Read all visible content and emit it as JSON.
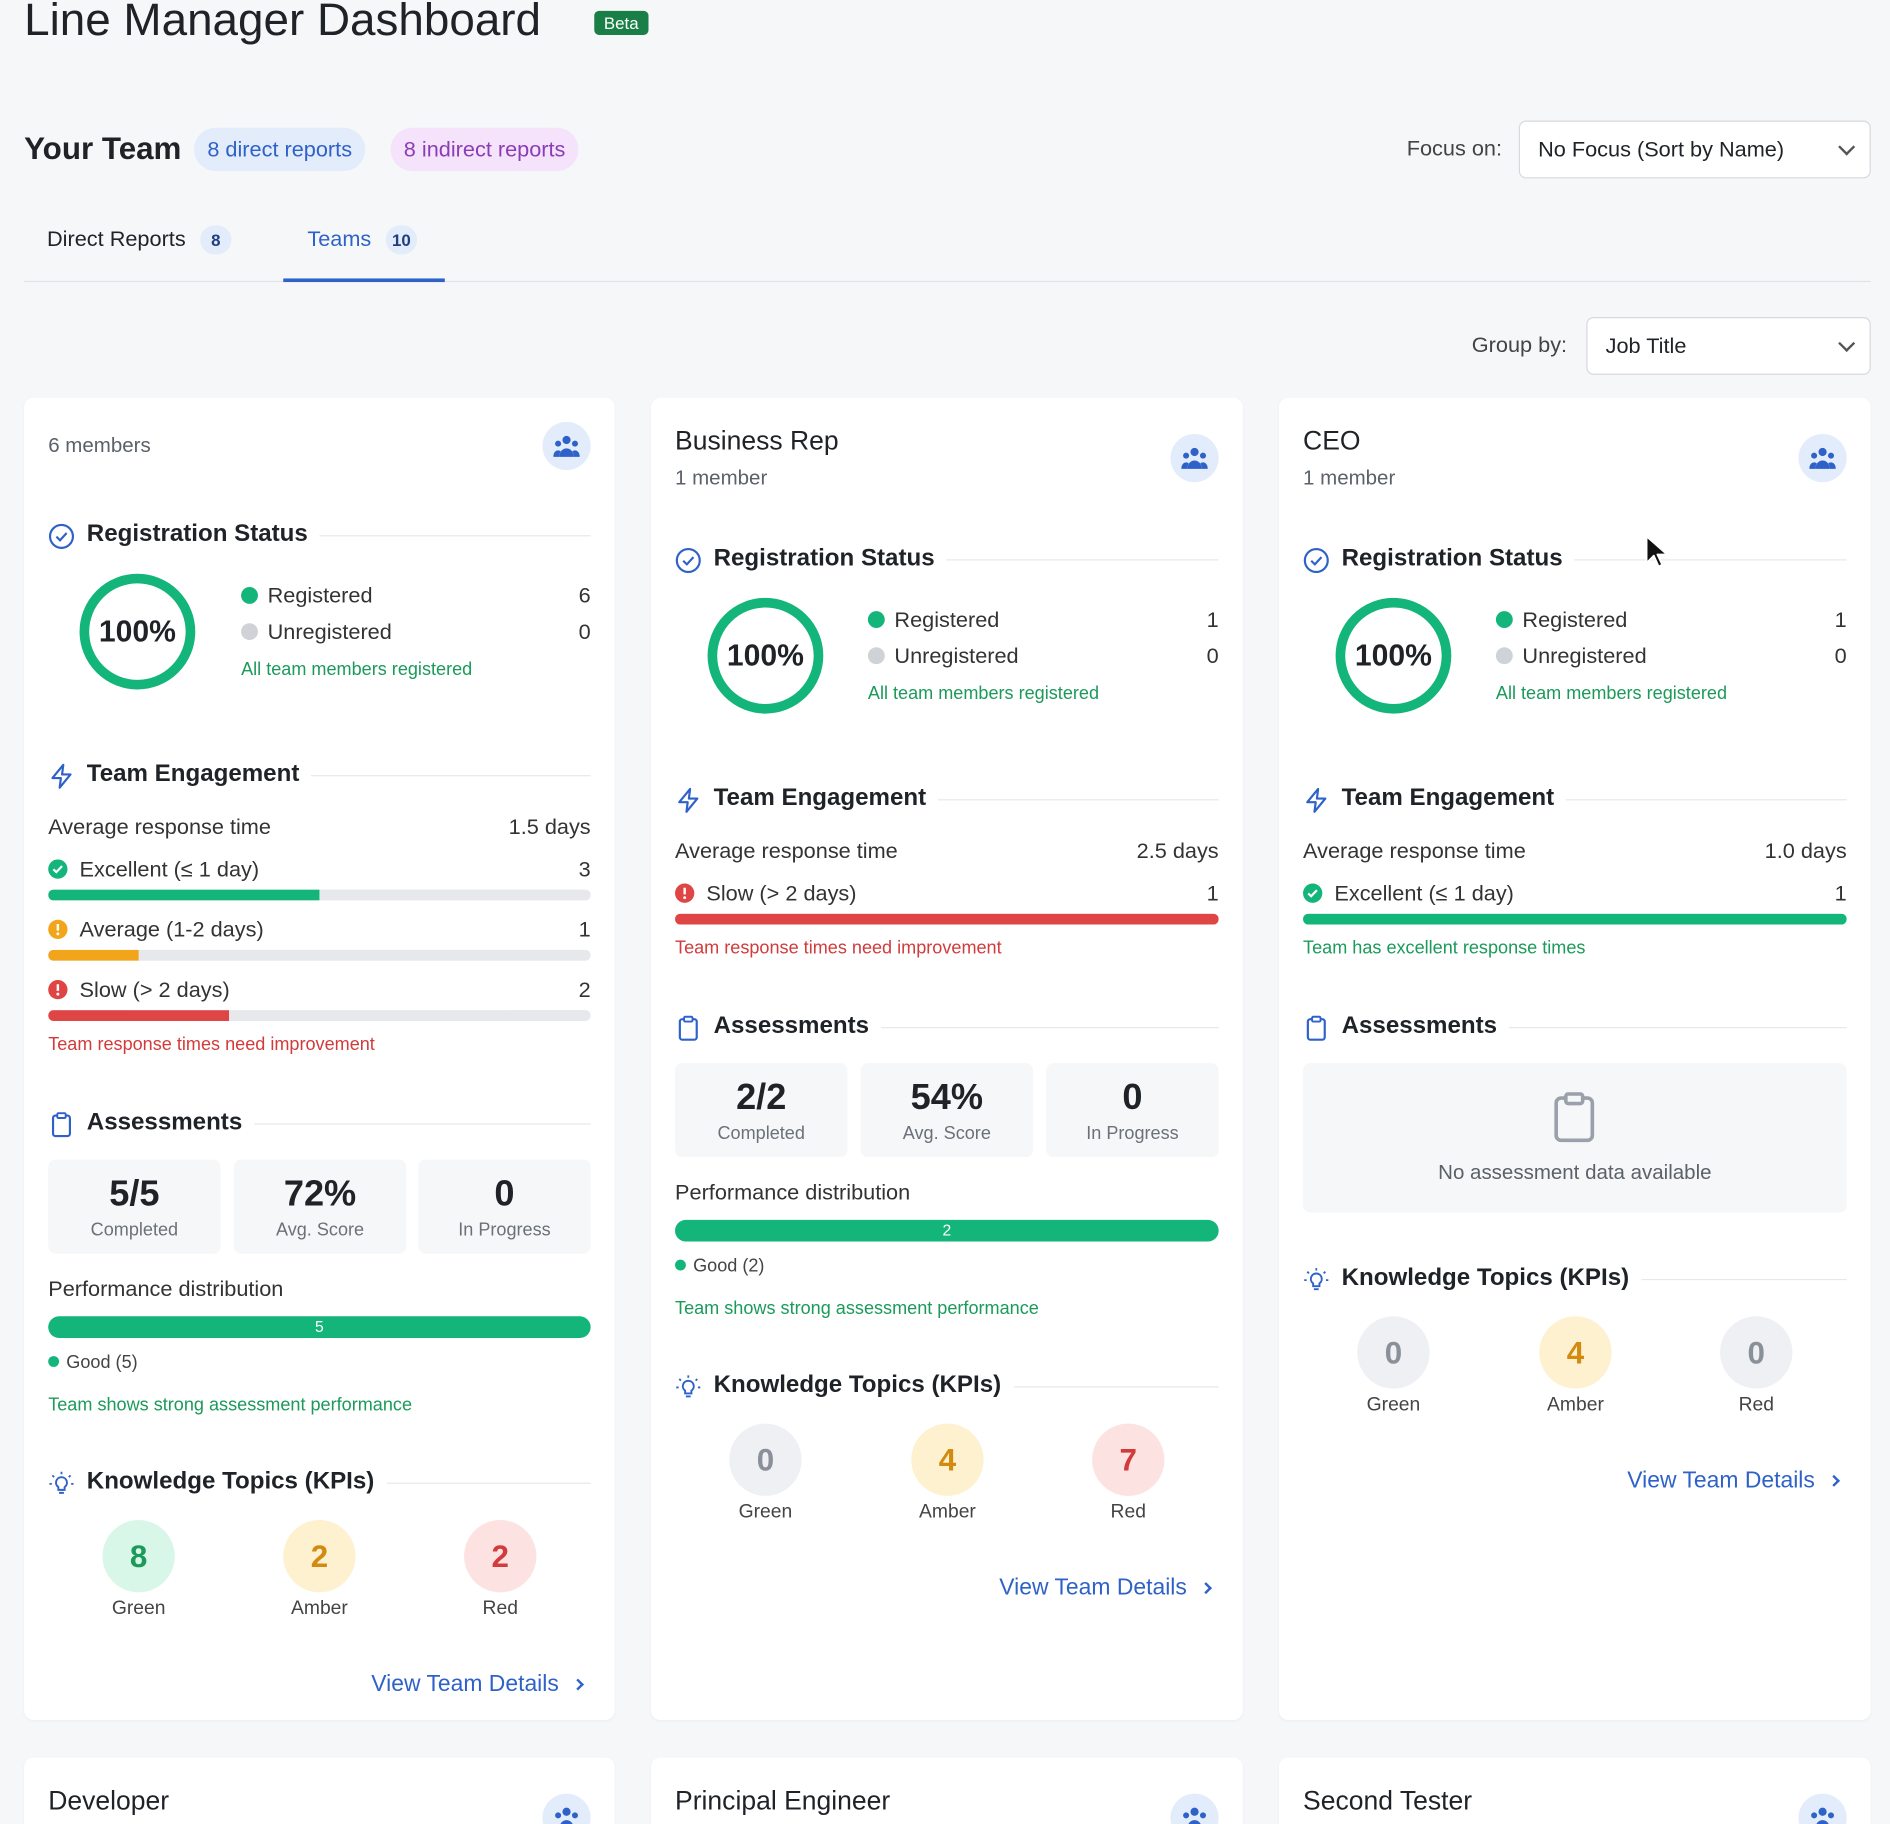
{
  "header": {
    "title": "Line Manager Dashboard",
    "badge": "Beta"
  },
  "team": {
    "title": "Your Team",
    "direct_chip": "8 direct reports",
    "indirect_chip": "8 indirect reports",
    "focus_label": "Focus on:",
    "focus_value": "No Focus (Sort by Name)"
  },
  "tabs": [
    {
      "label": "Direct Reports",
      "count": "8",
      "active": false
    },
    {
      "label": "Teams",
      "count": "10",
      "active": true
    }
  ],
  "group_by": {
    "label": "Group by:",
    "value": "Job Title"
  },
  "colors": {
    "accent": "#2f62c8",
    "green": "#13b57a",
    "amber": "#f2a41a",
    "red": "#e04545",
    "track": "#e6e8eb"
  },
  "labels": {
    "registration": "Registration Status",
    "engagement": "Team Engagement",
    "assessments": "Assessments",
    "kpis": "Knowledge Topics (KPIs)",
    "registered": "Registered",
    "unregistered": "Unregistered",
    "avg_response": "Average response time",
    "completed": "Completed",
    "avg_score": "Avg. Score",
    "in_progress": "In Progress",
    "perf_dist": "Performance distribution",
    "green": "Green",
    "amber": "Amber",
    "red": "Red",
    "view_details": "View Team Details"
  },
  "cards": [
    {
      "name": "",
      "members": "6 members",
      "reg_pct": "100%",
      "registered": "6",
      "unregistered": "0",
      "reg_msg": "All team members registered",
      "avg_response": "1.5 days",
      "eng_rows": [
        {
          "label": "Excellent (≤ 1 day)",
          "count": "3",
          "status": "excellent",
          "fraction": 0.5
        },
        {
          "label": "Average (1-2 days)",
          "count": "1",
          "status": "average",
          "fraction": 0.167
        },
        {
          "label": "Slow (> 2 days)",
          "count": "2",
          "status": "slow",
          "fraction": 0.333
        }
      ],
      "eng_msg": "Team response times need improvement",
      "completed": "5/5",
      "avg_score": "72%",
      "in_progress": "0",
      "perf_good": "5",
      "perf_legend": "Good (5)",
      "perf_msg": "Team shows strong assessment performance",
      "kpi_green": "8",
      "kpi_amber": "2",
      "kpi_red": "2"
    },
    {
      "name": "Business Rep",
      "members": "1 member",
      "reg_pct": "100%",
      "registered": "1",
      "unregistered": "0",
      "reg_msg": "All team members registered",
      "avg_response": "2.5 days",
      "eng_rows": [
        {
          "label": "Slow (> 2 days)",
          "count": "1",
          "status": "slow",
          "fraction": 1.0
        }
      ],
      "eng_msg": "Team response times need improvement",
      "completed": "2/2",
      "avg_score": "54%",
      "in_progress": "0",
      "perf_good": "2",
      "perf_legend": "Good (2)",
      "perf_msg": "Team shows strong assessment performance",
      "kpi_green": "0",
      "kpi_amber": "4",
      "kpi_red": "7"
    },
    {
      "name": "CEO",
      "members": "1 member",
      "reg_pct": "100%",
      "registered": "1",
      "unregistered": "0",
      "reg_msg": "All team members registered",
      "avg_response": "1.0 days",
      "eng_rows": [
        {
          "label": "Excellent (≤ 1 day)",
          "count": "1",
          "status": "excellent",
          "fraction": 1.0
        }
      ],
      "eng_msg": "Team has excellent response times",
      "empty_msg": "No assessment data available",
      "kpi_green": "0",
      "kpi_amber": "4",
      "kpi_red": "0"
    }
  ],
  "next_cards": [
    "Developer",
    "Principal Engineer",
    "Second Tester"
  ]
}
